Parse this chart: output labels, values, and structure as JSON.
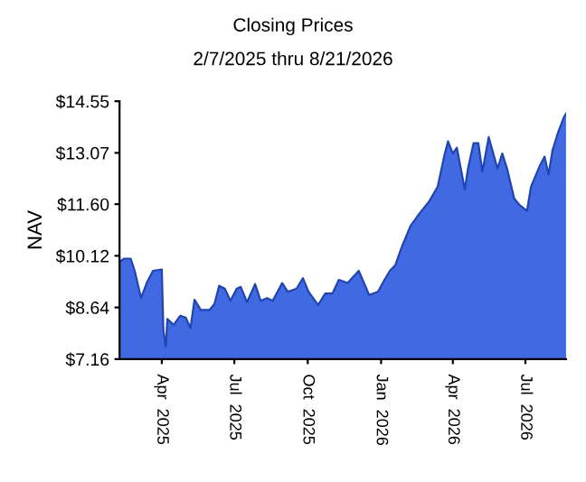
{
  "chart_data": {
    "type": "area",
    "title": "Closing Prices",
    "subtitle": "2/7/2025 thru 8/21/2026",
    "ylabel": "NAV",
    "x": [
      "2025-02-07",
      "2025-02-13",
      "2025-02-21",
      "2025-02-26",
      "2025-03-06",
      "2025-03-13",
      "2025-03-21",
      "2025-04-01",
      "2025-04-03",
      "2025-04-06",
      "2025-04-08",
      "2025-04-16",
      "2025-04-24",
      "2025-05-01",
      "2025-05-07",
      "2025-05-12",
      "2025-05-20",
      "2025-05-31",
      "2025-06-06",
      "2025-06-12",
      "2025-06-19",
      "2025-06-26",
      "2025-07-04",
      "2025-07-09",
      "2025-07-17",
      "2025-07-27",
      "2025-08-03",
      "2025-08-11",
      "2025-08-18",
      "2025-08-30",
      "2025-09-06",
      "2025-09-17",
      "2025-09-25",
      "2025-10-02",
      "2025-10-14",
      "2025-10-23",
      "2025-11-01",
      "2025-11-09",
      "2025-11-20",
      "2025-12-04",
      "2025-12-17",
      "2025-12-28",
      "2026-01-04",
      "2026-01-12",
      "2026-01-19",
      "2026-01-27",
      "2026-02-07",
      "2026-02-18",
      "2026-03-02",
      "2026-03-13",
      "2026-03-21",
      "2026-03-26",
      "2026-04-01",
      "2026-04-06",
      "2026-04-11",
      "2026-04-16",
      "2026-04-20",
      "2026-04-27",
      "2026-05-03",
      "2026-05-08",
      "2026-05-16",
      "2026-05-27",
      "2026-06-02",
      "2026-06-08",
      "2026-06-17",
      "2026-06-23",
      "2026-07-03",
      "2026-07-08",
      "2026-07-19",
      "2026-07-25",
      "2026-07-30",
      "2026-08-04",
      "2026-08-11",
      "2026-08-18",
      "2026-08-21"
    ],
    "series": [
      {
        "color": "#4169e1",
        "values": [
          9.95,
          10.04,
          10.04,
          9.69,
          8.91,
          9.34,
          9.69,
          9.73,
          7.97,
          7.53,
          8.31,
          8.14,
          8.4,
          8.35,
          8.05,
          8.86,
          8.57,
          8.57,
          8.74,
          9.26,
          9.18,
          8.83,
          9.18,
          9.23,
          8.79,
          9.31,
          8.83,
          8.91,
          8.83,
          9.34,
          9.09,
          9.18,
          9.48,
          9.09,
          8.71,
          9.04,
          9.04,
          9.43,
          9.34,
          9.69,
          9.0,
          9.09,
          9.38,
          9.69,
          9.86,
          10.38,
          10.98,
          11.33,
          11.67,
          12.1,
          12.96,
          13.4,
          13.05,
          13.22,
          12.62,
          12.02,
          12.62,
          13.35,
          13.35,
          12.53,
          13.52,
          12.62,
          13.05,
          12.62,
          11.76,
          11.59,
          11.41,
          12.1,
          12.7,
          12.96,
          12.45,
          13.14,
          13.66,
          14.08,
          14.2
        ]
      }
    ],
    "xlim": [
      "2025-02-07",
      "2026-08-21"
    ],
    "xticks": [
      {
        "value": "2025-04-01",
        "label": "Apr  2025"
      },
      {
        "value": "2025-07-01",
        "label": "Jul  2025"
      },
      {
        "value": "2025-10-01",
        "label": "Oct  2025"
      },
      {
        "value": "2026-01-01",
        "label": "Jan  2026"
      },
      {
        "value": "2026-04-01",
        "label": "Apr  2026"
      },
      {
        "value": "2026-07-01",
        "label": "Jul  2026"
      }
    ],
    "ylim": [
      7.16,
      14.55
    ],
    "yticks": [
      {
        "value": 7.16,
        "label": "$7.16"
      },
      {
        "value": 8.64,
        "label": "$8.64"
      },
      {
        "value": 10.12,
        "label": "$10.12"
      },
      {
        "value": 11.6,
        "label": "$11.60"
      },
      {
        "value": 13.07,
        "label": "$13.07"
      },
      {
        "value": 14.55,
        "label": "$14.55"
      }
    ],
    "grid": false,
    "legend": false
  }
}
